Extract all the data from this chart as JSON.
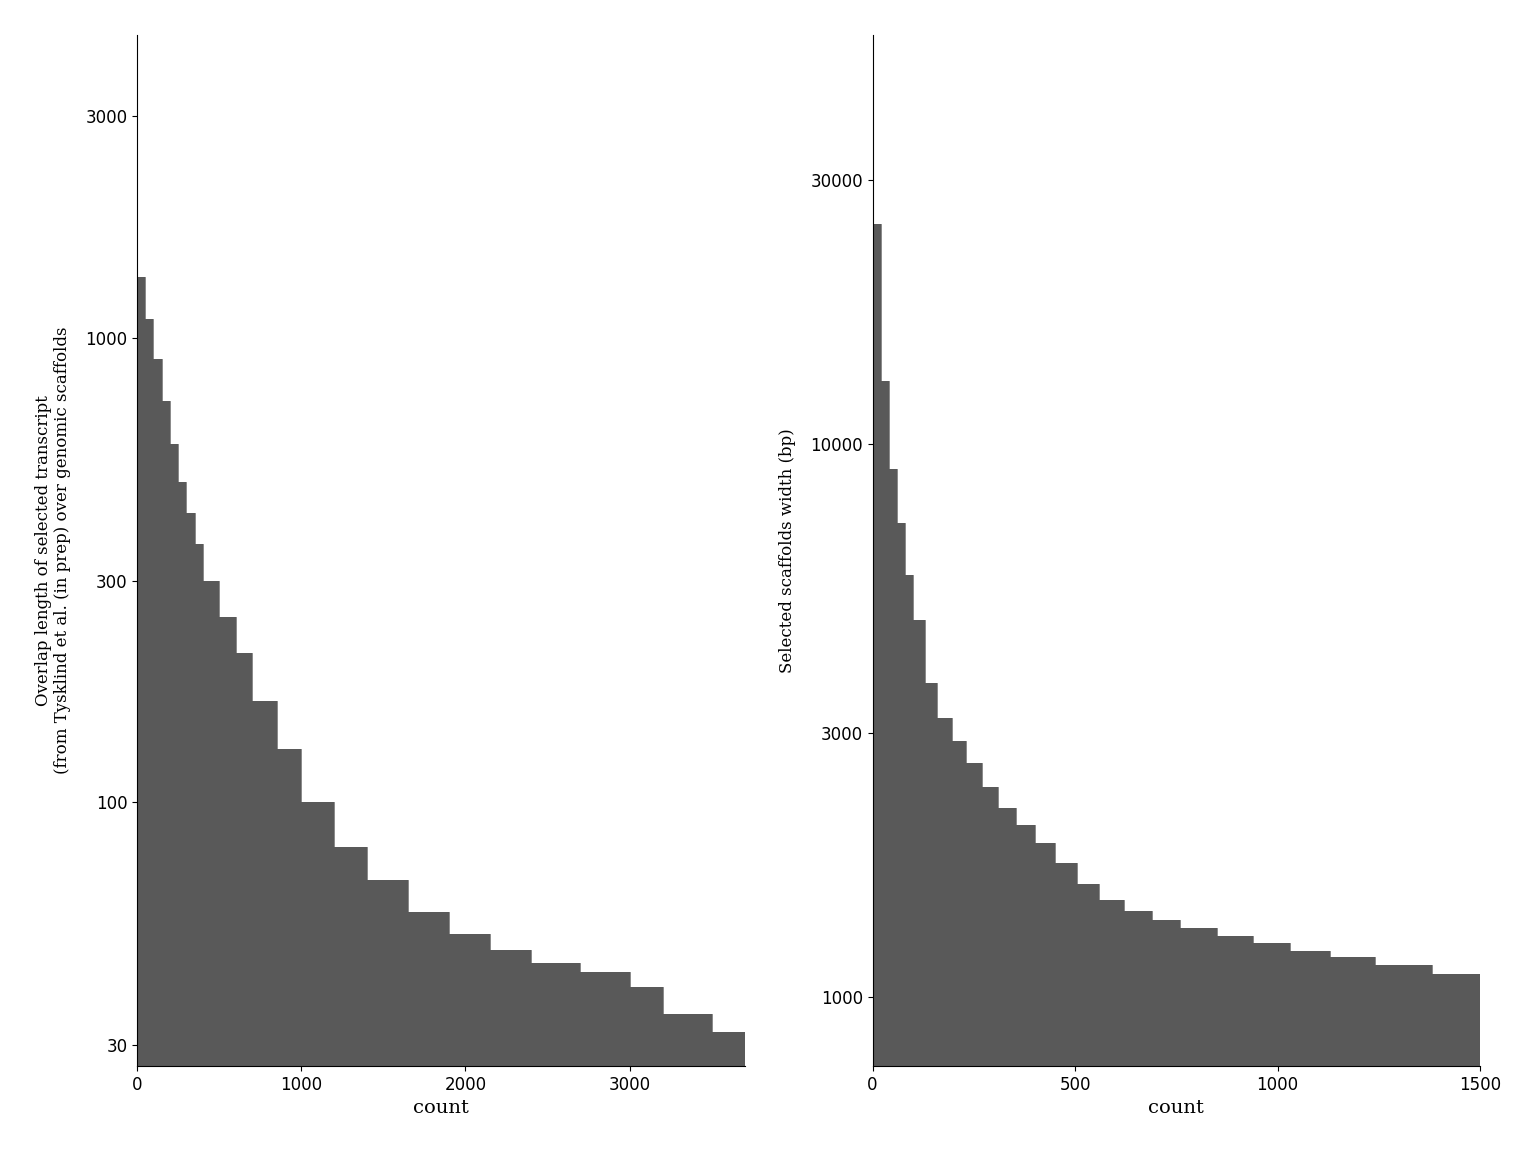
{
  "left": {
    "ylabel": "Overlap length of selected transcript\n(from Tysklind et al. (in prep) over genomic scaffolds",
    "xlabel": "count",
    "bar_color": "#595959",
    "yticks": [
      30,
      100,
      300,
      1000,
      3000
    ],
    "xticks": [
      0,
      1000,
      2000,
      3000
    ],
    "ylim_log": [
      27,
      4500
    ],
    "xlim": [
      0,
      3700
    ],
    "step_x": [
      0,
      50,
      100,
      150,
      200,
      250,
      300,
      350,
      400,
      500,
      600,
      700,
      850,
      1000,
      1200,
      1400,
      1650,
      1900,
      2150,
      2400,
      2700,
      3000,
      3200,
      3500,
      3700
    ],
    "step_y": [
      1350,
      1100,
      900,
      730,
      590,
      490,
      420,
      360,
      300,
      250,
      210,
      165,
      130,
      100,
      80,
      68,
      58,
      52,
      48,
      45,
      43,
      40,
      35,
      32
    ]
  },
  "right": {
    "ylabel": "Selected scaffolds width (bp)",
    "xlabel": "count",
    "bar_color": "#595959",
    "yticks": [
      1000,
      3000,
      10000,
      30000
    ],
    "xticks": [
      0,
      500,
      1000,
      1500
    ],
    "ylim_log": [
      750,
      55000
    ],
    "xlim": [
      0,
      1500
    ],
    "step_x": [
      0,
      20,
      40,
      60,
      80,
      100,
      130,
      160,
      195,
      230,
      270,
      310,
      355,
      400,
      450,
      505,
      560,
      620,
      690,
      760,
      850,
      940,
      1030,
      1130,
      1240,
      1380,
      1500
    ],
    "step_y": [
      25000,
      13000,
      9000,
      7200,
      5800,
      4800,
      3700,
      3200,
      2900,
      2650,
      2400,
      2200,
      2050,
      1900,
      1750,
      1600,
      1500,
      1430,
      1380,
      1330,
      1290,
      1250,
      1210,
      1180,
      1140,
      1100
    ]
  },
  "figure_bg": "#ffffff",
  "axes_bg": "#ffffff"
}
